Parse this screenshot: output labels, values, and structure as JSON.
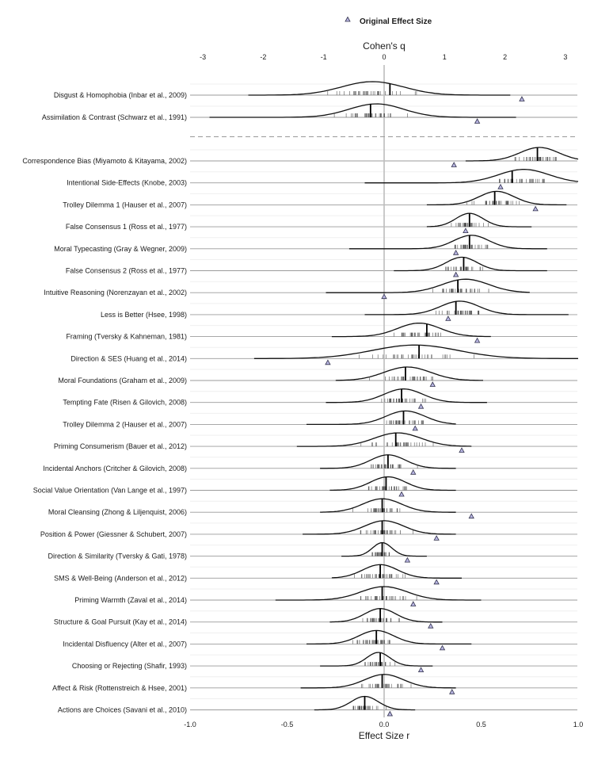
{
  "chart_data": {
    "type": "ridgeline",
    "legend": {
      "label": "Original Effect Size",
      "position": "top-center",
      "marker": "triangle"
    },
    "top_axis": {
      "title": "Cohen's q",
      "ticks": [
        -3,
        -2,
        -1,
        0,
        1,
        2,
        3
      ],
      "tick_labels": [
        "-3",
        "-2",
        "-1",
        "0",
        "1",
        "2",
        "3"
      ]
    },
    "bottom_axis": {
      "title": "Effect Size r",
      "range": [
        -1.0,
        1.0
      ],
      "ticks": [
        -1.0,
        -0.5,
        0.0,
        0.5,
        1.0
      ],
      "tick_labels": [
        "-1.0",
        "-0.5",
        "0.0",
        "0.5",
        "1.0"
      ]
    },
    "vertical_reference_line_at": 0,
    "separator_after_row": 1,
    "rows": [
      {
        "label": "Disgust & Homophobia (Inbar et al., 2009)",
        "center": -0.06,
        "spread": 0.16,
        "range": [
          -0.7,
          0.65
        ],
        "median": 0.03,
        "original": 0.71
      },
      {
        "label": "Assimilation & Contrast (Schwarz et al., 1991)",
        "center": -0.04,
        "spread": 0.14,
        "range": [
          -0.9,
          0.68
        ],
        "median": -0.07,
        "original": 0.48
      },
      {
        "label": "Correspondence Bias (Miyamoto & Kitayama, 2002)",
        "center": 0.8,
        "spread": 0.1,
        "range": [
          0.42,
          1.0
        ],
        "median": 0.79,
        "original": 0.36
      },
      {
        "label": "Intentional Side-Effects (Knobe, 2003)",
        "center": 0.72,
        "spread": 0.13,
        "range": [
          -0.1,
          1.0
        ],
        "median": 0.66,
        "original": 0.6
      },
      {
        "label": "Trolley Dilemma 1 (Hauser et al., 2007)",
        "center": 0.58,
        "spread": 0.09,
        "range": [
          0.22,
          0.94
        ],
        "median": 0.57,
        "original": 0.78
      },
      {
        "label": "False Consensus 1 (Ross et al., 1977)",
        "center": 0.44,
        "spread": 0.07,
        "range": [
          0.22,
          0.76
        ],
        "median": 0.44,
        "original": 0.42
      },
      {
        "label": "Moral Typecasting (Gray & Wegner, 2009)",
        "center": 0.45,
        "spread": 0.09,
        "range": [
          -0.18,
          0.84
        ],
        "median": 0.44,
        "original": 0.37
      },
      {
        "label": "False Consensus 2 (Ross et al., 1977)",
        "center": 0.4,
        "spread": 0.08,
        "range": [
          0.05,
          0.84
        ],
        "median": 0.41,
        "original": 0.37
      },
      {
        "label": "Intuitive Reasoning (Norenzayan et al., 2002)",
        "center": 0.42,
        "spread": 0.12,
        "range": [
          -0.3,
          0.75
        ],
        "median": 0.38,
        "original": 0.0
      },
      {
        "label": "Less is Better (Hsee, 1998)",
        "center": 0.39,
        "spread": 0.1,
        "range": [
          -0.1,
          0.95
        ],
        "median": 0.37,
        "original": 0.33
      },
      {
        "label": "Framing (Tversky & Kahneman, 1981)",
        "center": 0.18,
        "spread": 0.11,
        "range": [
          -0.27,
          0.55
        ],
        "median": 0.22,
        "original": 0.48
      },
      {
        "label": "Direction & SES (Huang et al., 2014)",
        "center": 0.16,
        "spread": 0.22,
        "range": [
          -0.67,
          1.0
        ],
        "median": 0.18,
        "original": -0.29
      },
      {
        "label": "Moral Foundations (Graham et al., 2009)",
        "center": 0.12,
        "spread": 0.12,
        "range": [
          -0.25,
          0.51
        ],
        "median": 0.11,
        "original": 0.25
      },
      {
        "label": "Tempting Fate (Risen & Gilovich, 2008)",
        "center": 0.1,
        "spread": 0.1,
        "range": [
          -0.3,
          0.53
        ],
        "median": 0.09,
        "original": 0.19
      },
      {
        "label": "Trolley Dilemma 2 (Hauser et al., 2007)",
        "center": 0.11,
        "spread": 0.1,
        "range": [
          -0.4,
          0.37
        ],
        "median": 0.1,
        "original": 0.16
      },
      {
        "label": "Priming Consumerism (Bauer et al., 2012)",
        "center": 0.07,
        "spread": 0.12,
        "range": [
          -0.45,
          0.45
        ],
        "median": 0.06,
        "original": 0.4
      },
      {
        "label": "Incidental Anchors (Critcher & Gilovich, 2008)",
        "center": 0.02,
        "spread": 0.09,
        "range": [
          -0.33,
          0.37
        ],
        "median": 0.02,
        "original": 0.15
      },
      {
        "label": "Social Value Orientation (Van Lange et al., 1997)",
        "center": 0.02,
        "spread": 0.09,
        "range": [
          -0.28,
          0.37
        ],
        "median": 0.01,
        "original": 0.09
      },
      {
        "label": "Moral Cleansing (Zhong & Liljenquist, 2006)",
        "center": -0.01,
        "spread": 0.1,
        "range": [
          -0.33,
          0.37
        ],
        "median": -0.01,
        "original": 0.45
      },
      {
        "label": "Position & Power (Giessner & Schubert, 2007)",
        "center": 0.0,
        "spread": 0.1,
        "range": [
          -0.42,
          0.37
        ],
        "median": -0.01,
        "original": 0.27
      },
      {
        "label": "Direction & Similarity (Tversky & Gati, 1978)",
        "center": -0.01,
        "spread": 0.05,
        "range": [
          -0.22,
          0.22
        ],
        "median": -0.01,
        "original": 0.12
      },
      {
        "label": "SMS & Well-Being (Anderson et al., 2012)",
        "center": -0.02,
        "spread": 0.09,
        "range": [
          -0.27,
          0.4
        ],
        "median": -0.02,
        "original": 0.27
      },
      {
        "label": "Priming Warmth (Zaval et al., 2014)",
        "center": 0.0,
        "spread": 0.12,
        "range": [
          -0.56,
          0.5
        ],
        "median": -0.01,
        "original": 0.15
      },
      {
        "label": "Structure & Goal Pursuit (Kay et al., 2014)",
        "center": -0.02,
        "spread": 0.08,
        "range": [
          -0.28,
          0.3
        ],
        "median": -0.02,
        "original": 0.24
      },
      {
        "label": "Incidental Disfluency (Alter et al., 2007)",
        "center": -0.04,
        "spread": 0.09,
        "range": [
          -0.4,
          0.45
        ],
        "median": -0.04,
        "original": 0.3
      },
      {
        "label": "Choosing or Rejecting (Shafir, 1993)",
        "center": -0.03,
        "spread": 0.06,
        "range": [
          -0.33,
          0.25
        ],
        "median": -0.02,
        "original": 0.19
      },
      {
        "label": "Affect & Risk (Rottenstreich & Hsee, 2001)",
        "center": 0.0,
        "spread": 0.1,
        "range": [
          -0.43,
          0.37
        ],
        "median": -0.01,
        "original": 0.35
      },
      {
        "label": "Actions are Choices (Savani et al., 2010)",
        "center": -0.1,
        "spread": 0.07,
        "range": [
          -0.36,
          0.16
        ],
        "median": -0.1,
        "original": 0.03
      }
    ]
  }
}
